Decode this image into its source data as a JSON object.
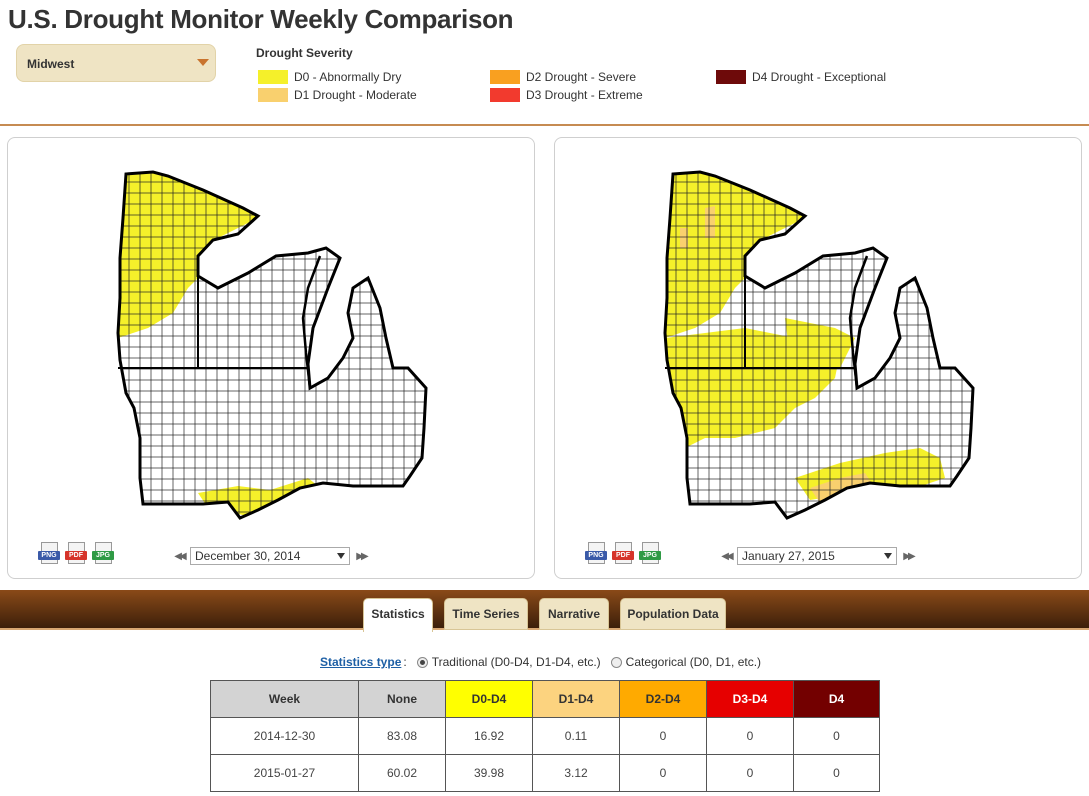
{
  "title": "U.S. Drought Monitor Weekly Comparison",
  "region": {
    "selected": "Midwest"
  },
  "legend": {
    "title": "Drought Severity",
    "items": [
      {
        "label": "D0 - Abnormally Dry",
        "color": "#f5f02a"
      },
      {
        "label": "D1 Drought - Moderate",
        "color": "#f9d06e"
      },
      {
        "label": "D2 Drought - Severe",
        "color": "#f9a020"
      },
      {
        "label": "D3 Drought - Extreme",
        "color": "#f23a2e"
      },
      {
        "label": "D4 Drought - Exceptional",
        "color": "#6e0a0a"
      }
    ]
  },
  "maps": {
    "left": {
      "date": "December 30, 2014",
      "export": [
        "PNG",
        "PDF",
        "JPG"
      ]
    },
    "right": {
      "date": "January 27, 2015",
      "export": [
        "PNG",
        "PDF",
        "JPG"
      ]
    }
  },
  "tabs": [
    "Statistics",
    "Time Series",
    "Narrative",
    "Population Data"
  ],
  "active_tab": "Statistics",
  "stats_type": {
    "label": "Statistics type",
    "options": [
      "Traditional (D0-D4, D1-D4, etc.)",
      "Categorical (D0, D1, etc.)"
    ],
    "selected": "Traditional (D0-D4, D1-D4, etc.)"
  },
  "table": {
    "headers": [
      "Week",
      "None",
      "D0-D4",
      "D1-D4",
      "D2-D4",
      "D3-D4",
      "D4"
    ],
    "header_colors": [
      "#d3d3d3",
      "#d3d3d3",
      "#ffff00",
      "#fcd37f",
      "#ffaa00",
      "#e60000",
      "#730000"
    ],
    "rows": [
      [
        "2014-12-30",
        "83.08",
        "16.92",
        "0.11",
        "0",
        "0",
        "0"
      ],
      [
        "2015-01-27",
        "60.02",
        "39.98",
        "3.12",
        "0",
        "0",
        "0"
      ]
    ]
  }
}
